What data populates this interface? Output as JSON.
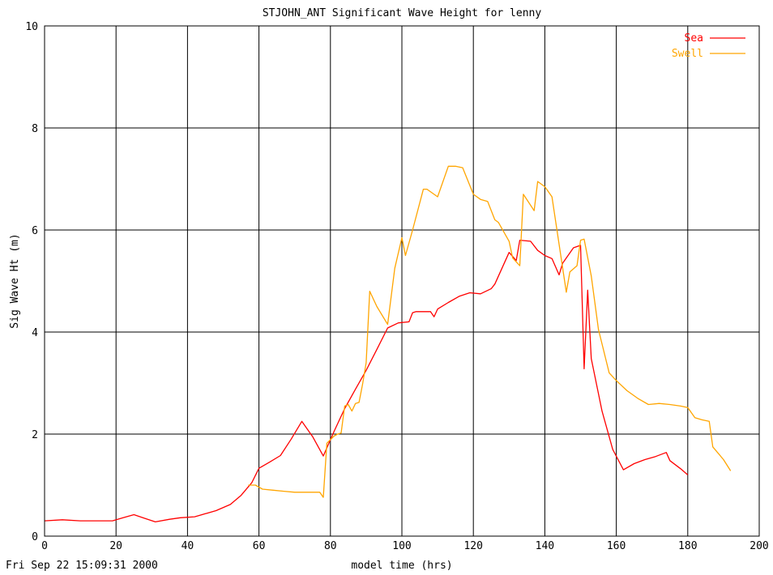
{
  "chart_data": {
    "type": "line",
    "title": "STJOHN_ANT Significant Wave Height for lenny",
    "xlabel": "model time (hrs)",
    "ylabel": "Sig Wave Ht (m)",
    "footer": "Fri Sep 22 15:09:31 2000",
    "xlim": [
      0,
      200
    ],
    "ylim": [
      0,
      10
    ],
    "x_ticks": [
      0,
      20,
      40,
      60,
      80,
      100,
      120,
      140,
      160,
      180,
      200
    ],
    "y_ticks": [
      0,
      2,
      4,
      6,
      8,
      10
    ],
    "grid": true,
    "legend_position": "top-right",
    "series": [
      {
        "name": "Sea",
        "color": "#ff0000",
        "x": [
          0,
          5,
          10,
          15,
          19,
          22,
          25,
          28,
          31,
          35,
          38,
          42,
          45,
          48,
          52,
          55,
          58,
          60,
          63,
          66,
          69,
          72,
          75,
          78,
          81,
          84,
          87,
          90,
          93,
          96,
          99,
          102,
          103,
          104,
          108,
          109,
          110,
          113,
          116,
          119,
          122,
          125,
          126,
          130,
          132,
          133,
          136,
          138,
          140,
          142,
          144,
          145,
          148,
          150,
          151,
          152,
          153,
          156,
          159,
          162,
          165,
          168,
          171,
          174,
          175,
          178,
          180
        ],
        "y": [
          0.3,
          0.32,
          0.3,
          0.3,
          0.3,
          0.36,
          0.42,
          0.35,
          0.28,
          0.33,
          0.36,
          0.38,
          0.44,
          0.5,
          0.62,
          0.8,
          1.05,
          1.33,
          1.45,
          1.58,
          1.9,
          2.25,
          1.95,
          1.57,
          2.05,
          2.5,
          2.88,
          3.25,
          3.66,
          4.08,
          4.18,
          4.2,
          4.38,
          4.4,
          4.4,
          4.3,
          4.45,
          4.58,
          4.7,
          4.77,
          4.75,
          4.85,
          4.94,
          5.56,
          5.4,
          5.8,
          5.78,
          5.6,
          5.5,
          5.44,
          5.12,
          5.35,
          5.65,
          5.7,
          3.28,
          4.82,
          3.48,
          2.45,
          1.7,
          1.3,
          1.42,
          1.5,
          1.56,
          1.64,
          1.48,
          1.32,
          1.2
        ]
      },
      {
        "name": "Swell",
        "color": "#ffa500",
        "x": [
          57,
          59,
          61,
          64,
          67,
          70,
          73,
          77,
          78,
          79,
          81,
          82,
          83,
          84,
          85,
          86,
          87,
          88,
          89,
          90,
          91,
          93,
          96,
          98,
          100,
          101,
          103,
          106,
          107,
          110,
          113,
          115,
          117,
          120,
          122,
          124,
          126,
          127,
          130,
          131,
          133,
          134,
          137,
          138,
          140,
          142,
          146,
          147,
          149,
          150,
          151,
          153,
          155,
          158,
          160,
          163,
          166,
          169,
          172,
          175,
          178,
          180,
          182,
          184,
          186,
          187,
          190,
          192
        ],
        "y": [
          1.0,
          1.0,
          0.92,
          0.9,
          0.88,
          0.86,
          0.86,
          0.86,
          0.76,
          1.82,
          1.96,
          2.0,
          2.02,
          2.55,
          2.58,
          2.45,
          2.6,
          2.62,
          2.98,
          3.4,
          4.8,
          4.5,
          4.15,
          5.25,
          5.85,
          5.5,
          6.0,
          6.8,
          6.8,
          6.65,
          7.25,
          7.25,
          7.22,
          6.7,
          6.6,
          6.56,
          6.2,
          6.15,
          5.78,
          5.45,
          5.3,
          6.7,
          6.38,
          6.95,
          6.85,
          6.65,
          4.78,
          5.18,
          5.3,
          5.8,
          5.82,
          5.1,
          4.05,
          3.2,
          3.05,
          2.85,
          2.7,
          2.58,
          2.6,
          2.58,
          2.55,
          2.52,
          2.32,
          2.28,
          2.25,
          1.75,
          1.5,
          1.28
        ]
      }
    ]
  }
}
